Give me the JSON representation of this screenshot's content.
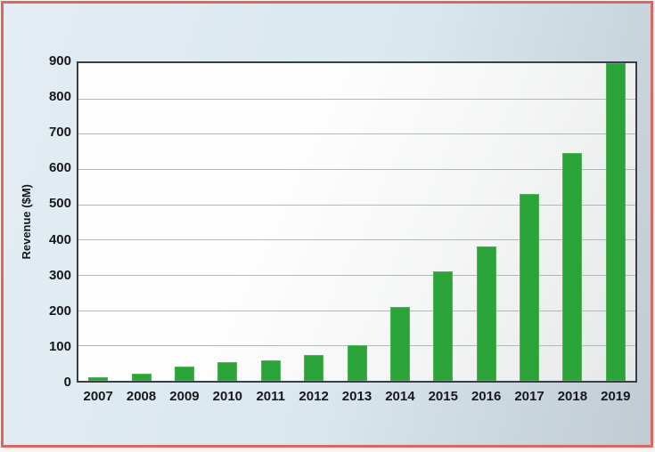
{
  "chart_data": {
    "type": "bar",
    "title": "",
    "xlabel": "",
    "ylabel": "Revenue ($M)",
    "categories": [
      "2007",
      "2008",
      "2009",
      "2010",
      "2011",
      "2012",
      "2013",
      "2014",
      "2015",
      "2016",
      "2017",
      "2018",
      "2019"
    ],
    "values": [
      10,
      20,
      40,
      52,
      58,
      72,
      100,
      210,
      310,
      380,
      530,
      645,
      900
    ],
    "ylim": [
      0,
      900
    ],
    "yticks": [
      0,
      100,
      200,
      300,
      400,
      500,
      600,
      700,
      800,
      900
    ],
    "grid": "horizontal-major",
    "legend_position": "none",
    "bar_color": "#2aa339",
    "grid_color": "#b2b7ba",
    "frame_color": "#3b3f43",
    "outer_border_color": "#d96764",
    "outer_background": "#dae7ef",
    "plot_background": "#fdfdfd",
    "text_color": "#17191b"
  }
}
